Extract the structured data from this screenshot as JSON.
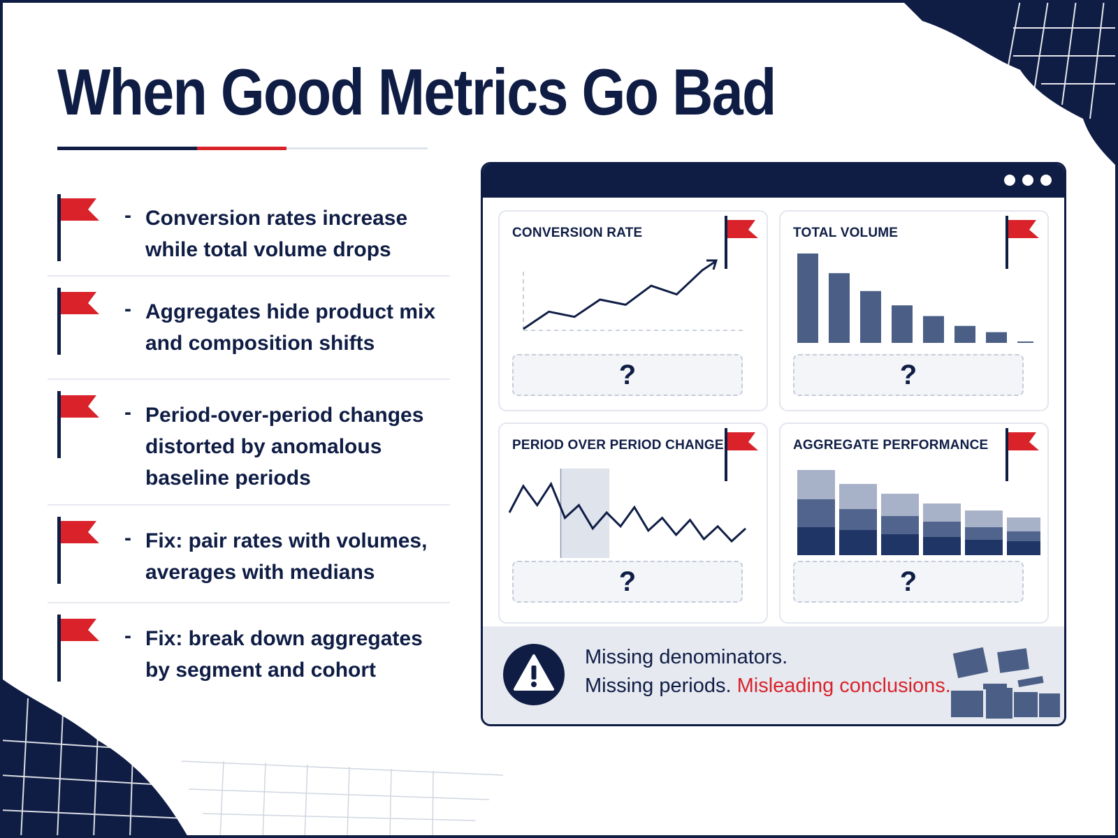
{
  "title": "When Good Metrics Go Bad",
  "colors": {
    "navy": "#0f1d45",
    "red": "#d9222a",
    "slate": "#4b5f86",
    "light_grey": "#e6e9f0"
  },
  "icons": {
    "flag": "red-flag-icon",
    "warning": "warning-triangle-icon",
    "window_dots": "ellipsis-icon"
  },
  "points": [
    {
      "dash": "-",
      "text": "Conversion rates increase while total volume drops"
    },
    {
      "dash": "-",
      "text": "Aggregates hide product mix and composition shifts"
    },
    {
      "dash": "-",
      "text": "Period-over-period changes distorted by anomalous baseline periods"
    },
    {
      "dash": "-",
      "text": "Fix: pair rates with volumes, averages with medians"
    },
    {
      "dash": "-",
      "text": "Fix: break down aggregates by segment and cohort"
    }
  ],
  "dashboard": {
    "panels": [
      {
        "title": "CONVERSION RATE",
        "placeholder": "?",
        "chart_data": {
          "type": "line",
          "trend": "up",
          "values": [
            0,
            20,
            14,
            34,
            28,
            50,
            40,
            68
          ]
        }
      },
      {
        "title": "TOTAL VOLUME",
        "placeholder": "?",
        "chart_data": {
          "type": "bar",
          "trend": "down",
          "values": [
            100,
            78,
            58,
            42,
            30,
            19,
            12,
            1
          ]
        }
      },
      {
        "title": "PERIOD OVER PERIOD CHANGE",
        "placeholder": "?",
        "chart_data": {
          "type": "line",
          "values": [
            55,
            80,
            62,
            82,
            50,
            62,
            40,
            55,
            42,
            60,
            38,
            50,
            34,
            48,
            30,
            42,
            28,
            40
          ],
          "highlight": {
            "from_index": 4,
            "to_index": 7
          }
        }
      },
      {
        "title": "AGGREGATE PERFORMANCE",
        "placeholder": "?",
        "chart_data": {
          "type": "bar",
          "stacked": true,
          "stacks": [
            [
              40,
              40,
              42
            ],
            [
              36,
              30,
              36
            ],
            [
              30,
              26,
              32
            ],
            [
              26,
              22,
              26
            ],
            [
              22,
              18,
              24
            ],
            [
              20,
              14,
              20
            ]
          ]
        }
      }
    ],
    "alert": {
      "line1": "Missing denominators.",
      "line2_prefix": "Missing periods.",
      "line2_highlight": "Misleading conclusions."
    }
  }
}
